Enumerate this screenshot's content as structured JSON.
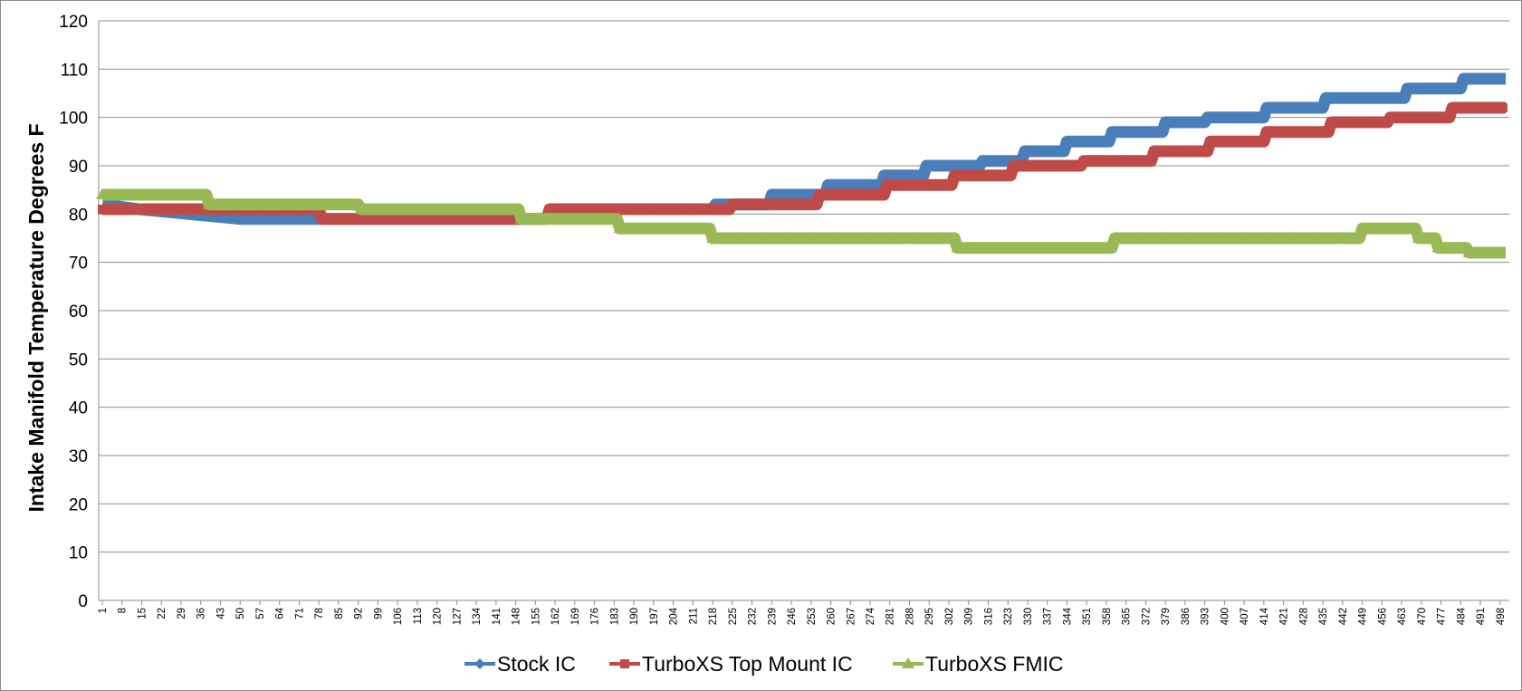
{
  "chart_data": {
    "type": "line",
    "title": "",
    "xlabel": "",
    "ylabel": "Intake Manifold Temperature Degrees F",
    "ylim": [
      0,
      120
    ],
    "yticks": [
      "0",
      "10",
      "20",
      "30",
      "40",
      "50",
      "60",
      "70",
      "80",
      "90",
      "100",
      "110",
      "120"
    ],
    "xlim": [
      1,
      500
    ],
    "xticks": [
      "1",
      "8",
      "15",
      "22",
      "29",
      "36",
      "43",
      "50",
      "57",
      "64",
      "71",
      "78",
      "85",
      "92",
      "99",
      "106",
      "113",
      "120",
      "127",
      "134",
      "141",
      "148",
      "155",
      "162",
      "169",
      "176",
      "183",
      "190",
      "197",
      "204",
      "211",
      "218",
      "225",
      "232",
      "239",
      "246",
      "253",
      "260",
      "267",
      "274",
      "281",
      "288",
      "295",
      "302",
      "309",
      "316",
      "323",
      "330",
      "337",
      "344",
      "351",
      "358",
      "365",
      "372",
      "379",
      "386",
      "393",
      "400",
      "407",
      "414",
      "421",
      "428",
      "435",
      "442",
      "449",
      "456",
      "463",
      "470",
      "477",
      "484",
      "491",
      "498"
    ],
    "grid": "horizontal",
    "legend_position": "bottom",
    "series": [
      {
        "name": "Stock IC",
        "color": "#4a7ebb",
        "marker": "diamond",
        "steps": [
          [
            1,
            82
          ],
          [
            14,
            81
          ],
          [
            50,
            79
          ],
          [
            77,
            79
          ],
          [
            78,
            79
          ],
          [
            158,
            79
          ],
          [
            162,
            81
          ],
          [
            218,
            81
          ],
          [
            219,
            82
          ],
          [
            238,
            82
          ],
          [
            239,
            84
          ],
          [
            258,
            84
          ],
          [
            259,
            86
          ],
          [
            278,
            86
          ],
          [
            279,
            88
          ],
          [
            293,
            88
          ],
          [
            294,
            90
          ],
          [
            313,
            90
          ],
          [
            314,
            91
          ],
          [
            328,
            91
          ],
          [
            329,
            93
          ],
          [
            343,
            93
          ],
          [
            344,
            95
          ],
          [
            359,
            95
          ],
          [
            360,
            97
          ],
          [
            378,
            97
          ],
          [
            379,
            99
          ],
          [
            393,
            99
          ],
          [
            394,
            100
          ],
          [
            414,
            100
          ],
          [
            415,
            102
          ],
          [
            435,
            102
          ],
          [
            436,
            104
          ],
          [
            464,
            104
          ],
          [
            465,
            106
          ],
          [
            484,
            106
          ],
          [
            485,
            108
          ],
          [
            500,
            108
          ]
        ]
      },
      {
        "name": "TurboXS Top Mount IC",
        "color": "#be4b48",
        "marker": "square",
        "steps": [
          [
            1,
            81
          ],
          [
            78,
            81
          ],
          [
            79,
            79
          ],
          [
            159,
            79
          ],
          [
            160,
            81
          ],
          [
            224,
            81
          ],
          [
            225,
            82
          ],
          [
            255,
            82
          ],
          [
            256,
            84
          ],
          [
            279,
            84
          ],
          [
            280,
            86
          ],
          [
            303,
            86
          ],
          [
            304,
            88
          ],
          [
            324,
            88
          ],
          [
            325,
            90
          ],
          [
            349,
            90
          ],
          [
            350,
            91
          ],
          [
            374,
            91
          ],
          [
            375,
            93
          ],
          [
            394,
            93
          ],
          [
            395,
            95
          ],
          [
            414,
            95
          ],
          [
            415,
            97
          ],
          [
            437,
            97
          ],
          [
            438,
            99
          ],
          [
            458,
            99
          ],
          [
            459,
            100
          ],
          [
            480,
            100
          ],
          [
            481,
            102
          ],
          [
            500,
            102
          ]
        ]
      },
      {
        "name": "TurboXS FMIC",
        "color": "#98b954",
        "marker": "triangle",
        "steps": [
          [
            1,
            84
          ],
          [
            38,
            84
          ],
          [
            39,
            82
          ],
          [
            92,
            82
          ],
          [
            93,
            81
          ],
          [
            149,
            81
          ],
          [
            150,
            79
          ],
          [
            184,
            79
          ],
          [
            185,
            77
          ],
          [
            217,
            77
          ],
          [
            218,
            75
          ],
          [
            304,
            75
          ],
          [
            305,
            73
          ],
          [
            360,
            73
          ],
          [
            361,
            75
          ],
          [
            448,
            75
          ],
          [
            449,
            77
          ],
          [
            468,
            77
          ],
          [
            469,
            75
          ],
          [
            475,
            75
          ],
          [
            476,
            73
          ],
          [
            486,
            73
          ],
          [
            487,
            72
          ],
          [
            500,
            72
          ]
        ]
      }
    ]
  }
}
